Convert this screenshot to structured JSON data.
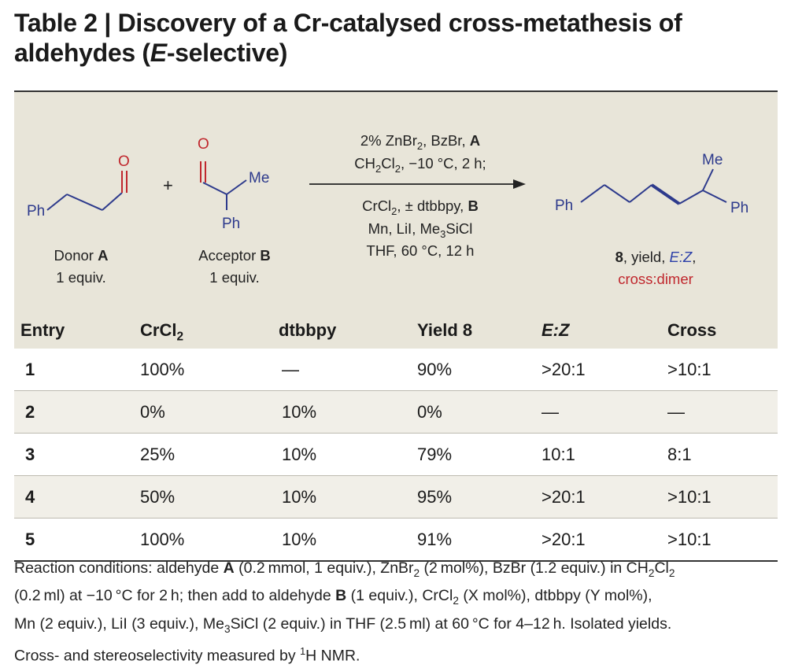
{
  "title": {
    "line1": "Table 2 | Discovery of a Cr-catalysed cross-metathesis of",
    "line2_a": "aldehydes (",
    "line2_e": "E",
    "line2_b": "-selective)"
  },
  "scheme": {
    "donor": {
      "atom_o": "O",
      "ph": "Ph",
      "label": "Donor",
      "letter": "A",
      "equiv": "1 equiv."
    },
    "plus": "+",
    "acceptor": {
      "atom_o": "O",
      "me": "Me",
      "ph": "Ph",
      "label": "Acceptor",
      "letter": "B",
      "equiv": "1 equiv."
    },
    "conditions": {
      "step1_line1_prefix": "2% ZnBr",
      "step1_line1_sub": "2",
      "step1_line1_mid": ", BzBr, ",
      "step1_line1_bold": "A",
      "step1_line2_a": "CH",
      "step1_line2_s1": "2",
      "step1_line2_b": "Cl",
      "step1_line2_s2": "2",
      "step1_line2_c": ", −10 °C, 2 h;",
      "step2_line1_a": "CrCl",
      "step2_line1_s": "2",
      "step2_line1_b": ", ± dtbbpy, ",
      "step2_line1_bold": "B",
      "step2_line2_a": "Mn, LiI, Me",
      "step2_line2_s": "3",
      "step2_line2_b": "SiCl",
      "step2_line3": "THF, 60 °C, 12 h"
    },
    "product": {
      "me": "Me",
      "ph_left": "Ph",
      "ph_right": "Ph",
      "number": "8",
      "desc_a": ", yield, ",
      "ez": "E:Z",
      "desc_b": ",",
      "cross": "cross:dimer",
      "accent_blue": "#2b3fa8",
      "accent_red": "#c0272d"
    }
  },
  "table": {
    "headers": [
      "Entry",
      "CrCl",
      "dtbbpy",
      "Yield 8",
      "E:Z",
      "Cross"
    ],
    "header_crcl_sub": "2",
    "rows": [
      [
        "1",
        "100%",
        "—",
        "90%",
        ">20:1",
        ">10:1"
      ],
      [
        "2",
        "0%",
        "10%",
        "0%",
        "—",
        "—"
      ],
      [
        "3",
        "25%",
        "10%",
        "79%",
        "10:1",
        "8:1"
      ],
      [
        "4",
        "50%",
        "10%",
        "95%",
        ">20:1",
        ">10:1"
      ],
      [
        "5",
        "100%",
        "10%",
        "91%",
        ">20:1",
        ">10:1"
      ]
    ]
  },
  "footnote": {
    "l1_a": "Reaction conditions: aldehyde ",
    "l1_b": "A",
    "l1_c": " (0.2 mmol, 1 equiv.), ZnBr",
    "l1_s1": "2",
    "l1_d": " (2 mol%), BzBr (1.2 equiv.) in CH",
    "l1_s2": "2",
    "l1_e": "Cl",
    "l1_s3": "2",
    "l2_a": "(0.2 ml) at −10 °C for 2 h; then add to aldehyde ",
    "l2_b": "B",
    "l2_c": " (1 equiv.), CrCl",
    "l2_s": "2",
    "l2_d": " (X mol%), dtbbpy (Y mol%),",
    "l3_a": "Mn (2 equiv.), LiI (3 equiv.), Me",
    "l3_s": "3",
    "l3_b": "SiCl (2 equiv.) in THF (2.5 ml) at 60 °C for 4–12 h. Isolated yields.",
    "l4_a": "Cross- and stereoselectivity measured by ",
    "l4_sup": "1",
    "l4_b": "H NMR."
  }
}
